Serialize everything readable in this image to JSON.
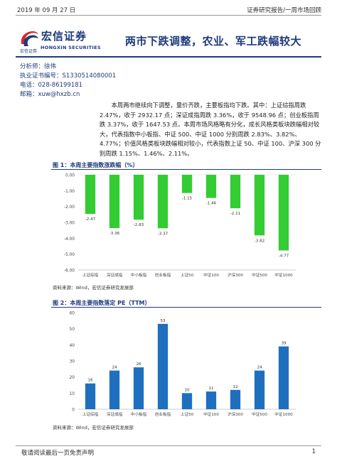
{
  "header": {
    "date": "2019 年 09 月 27 日",
    "report_type": "证券研究报告/一周市场回顾"
  },
  "logo": {
    "name_cn": "宏信证券",
    "sub_cn": "宏信证券",
    "sub_en": "HONGXIN SECURITIES",
    "brand_color": "#1f3b7a",
    "accent_color": "#d6262b"
  },
  "title": "两市下跌调整，农业、军工跌幅较大",
  "analyst": {
    "name": "分析师：徐伟",
    "license": "执业证书编号：S1330514080001",
    "phone": "电话：028-86199181",
    "email": "邮箱：xuw@hxzb.cn"
  },
  "summary": "本周两市继续向下调整，量价齐跌，主要板指均下跌。其中：上证综指周跌 2.47%，收于 2932.17 点；深证成指周跌 3.36%，收于 9548.96 点；创业板指周跌 3.37%，收于 1647.53 点。本周市场风格略有分化，成长风格类板块跌幅相对较大，代表指数中小板指、中证 500、中证 1000 分别周跌 2.83%、3.82%、4.77%；价值风格类板块跌幅相对较小，代表指数上证 50、中证 100、沪深 300 分别周跌 1.15%、1.46%、2.11%。",
  "figure1": {
    "title": "图 1：本周主要指数涨跌幅（%）",
    "source": "资料来源：Wind，宏信证券研究发展部"
  },
  "figure2": {
    "title": "图 2：本周主要指数落定 PE（TTM）",
    "source": "资料来源：Wind，宏信证券研究发展部"
  },
  "chart_data": [
    {
      "type": "bar",
      "categories": [
        "上证综指",
        "深证成指",
        "中小板指",
        "创业板指",
        "上证50",
        "中证100",
        "沪深300",
        "中证500",
        "中证1000"
      ],
      "values": [
        -2.47,
        -3.36,
        -2.83,
        -3.37,
        -1.15,
        -1.46,
        -2.11,
        -3.82,
        -4.77
      ],
      "value_labels": [
        "-2.47",
        "-3.36",
        "-2.83",
        "-3.37",
        "-1.15",
        "-1.46",
        "-2.11",
        "-3.82",
        "-4.77"
      ],
      "yticks": [
        "0.00",
        "-1.00",
        "-2.00",
        "-3.00",
        "-4.00",
        "-5.00",
        "-6.00"
      ],
      "ylim": [
        -6,
        0
      ],
      "color": "#33cc33",
      "grid": false
    },
    {
      "type": "bar",
      "categories": [
        "上证综指",
        "深证成指",
        "中小板指",
        "创业板指",
        "上证50",
        "中证100",
        "沪深300",
        "中证500",
        "中证1000"
      ],
      "values": [
        16,
        24,
        26,
        53,
        10,
        11,
        12,
        24,
        39
      ],
      "value_labels": [
        "16",
        "24",
        "26",
        "53",
        "10",
        "11",
        "12",
        "24",
        "39"
      ],
      "yticks": [
        "60",
        "50",
        "40",
        "30",
        "20",
        "10",
        "0"
      ],
      "ylim": [
        0,
        60
      ],
      "color": "#1f6fbf",
      "grid": false
    }
  ],
  "footer": {
    "disclaimer": "敬请阅读最后一页免责声明",
    "page": "1"
  }
}
